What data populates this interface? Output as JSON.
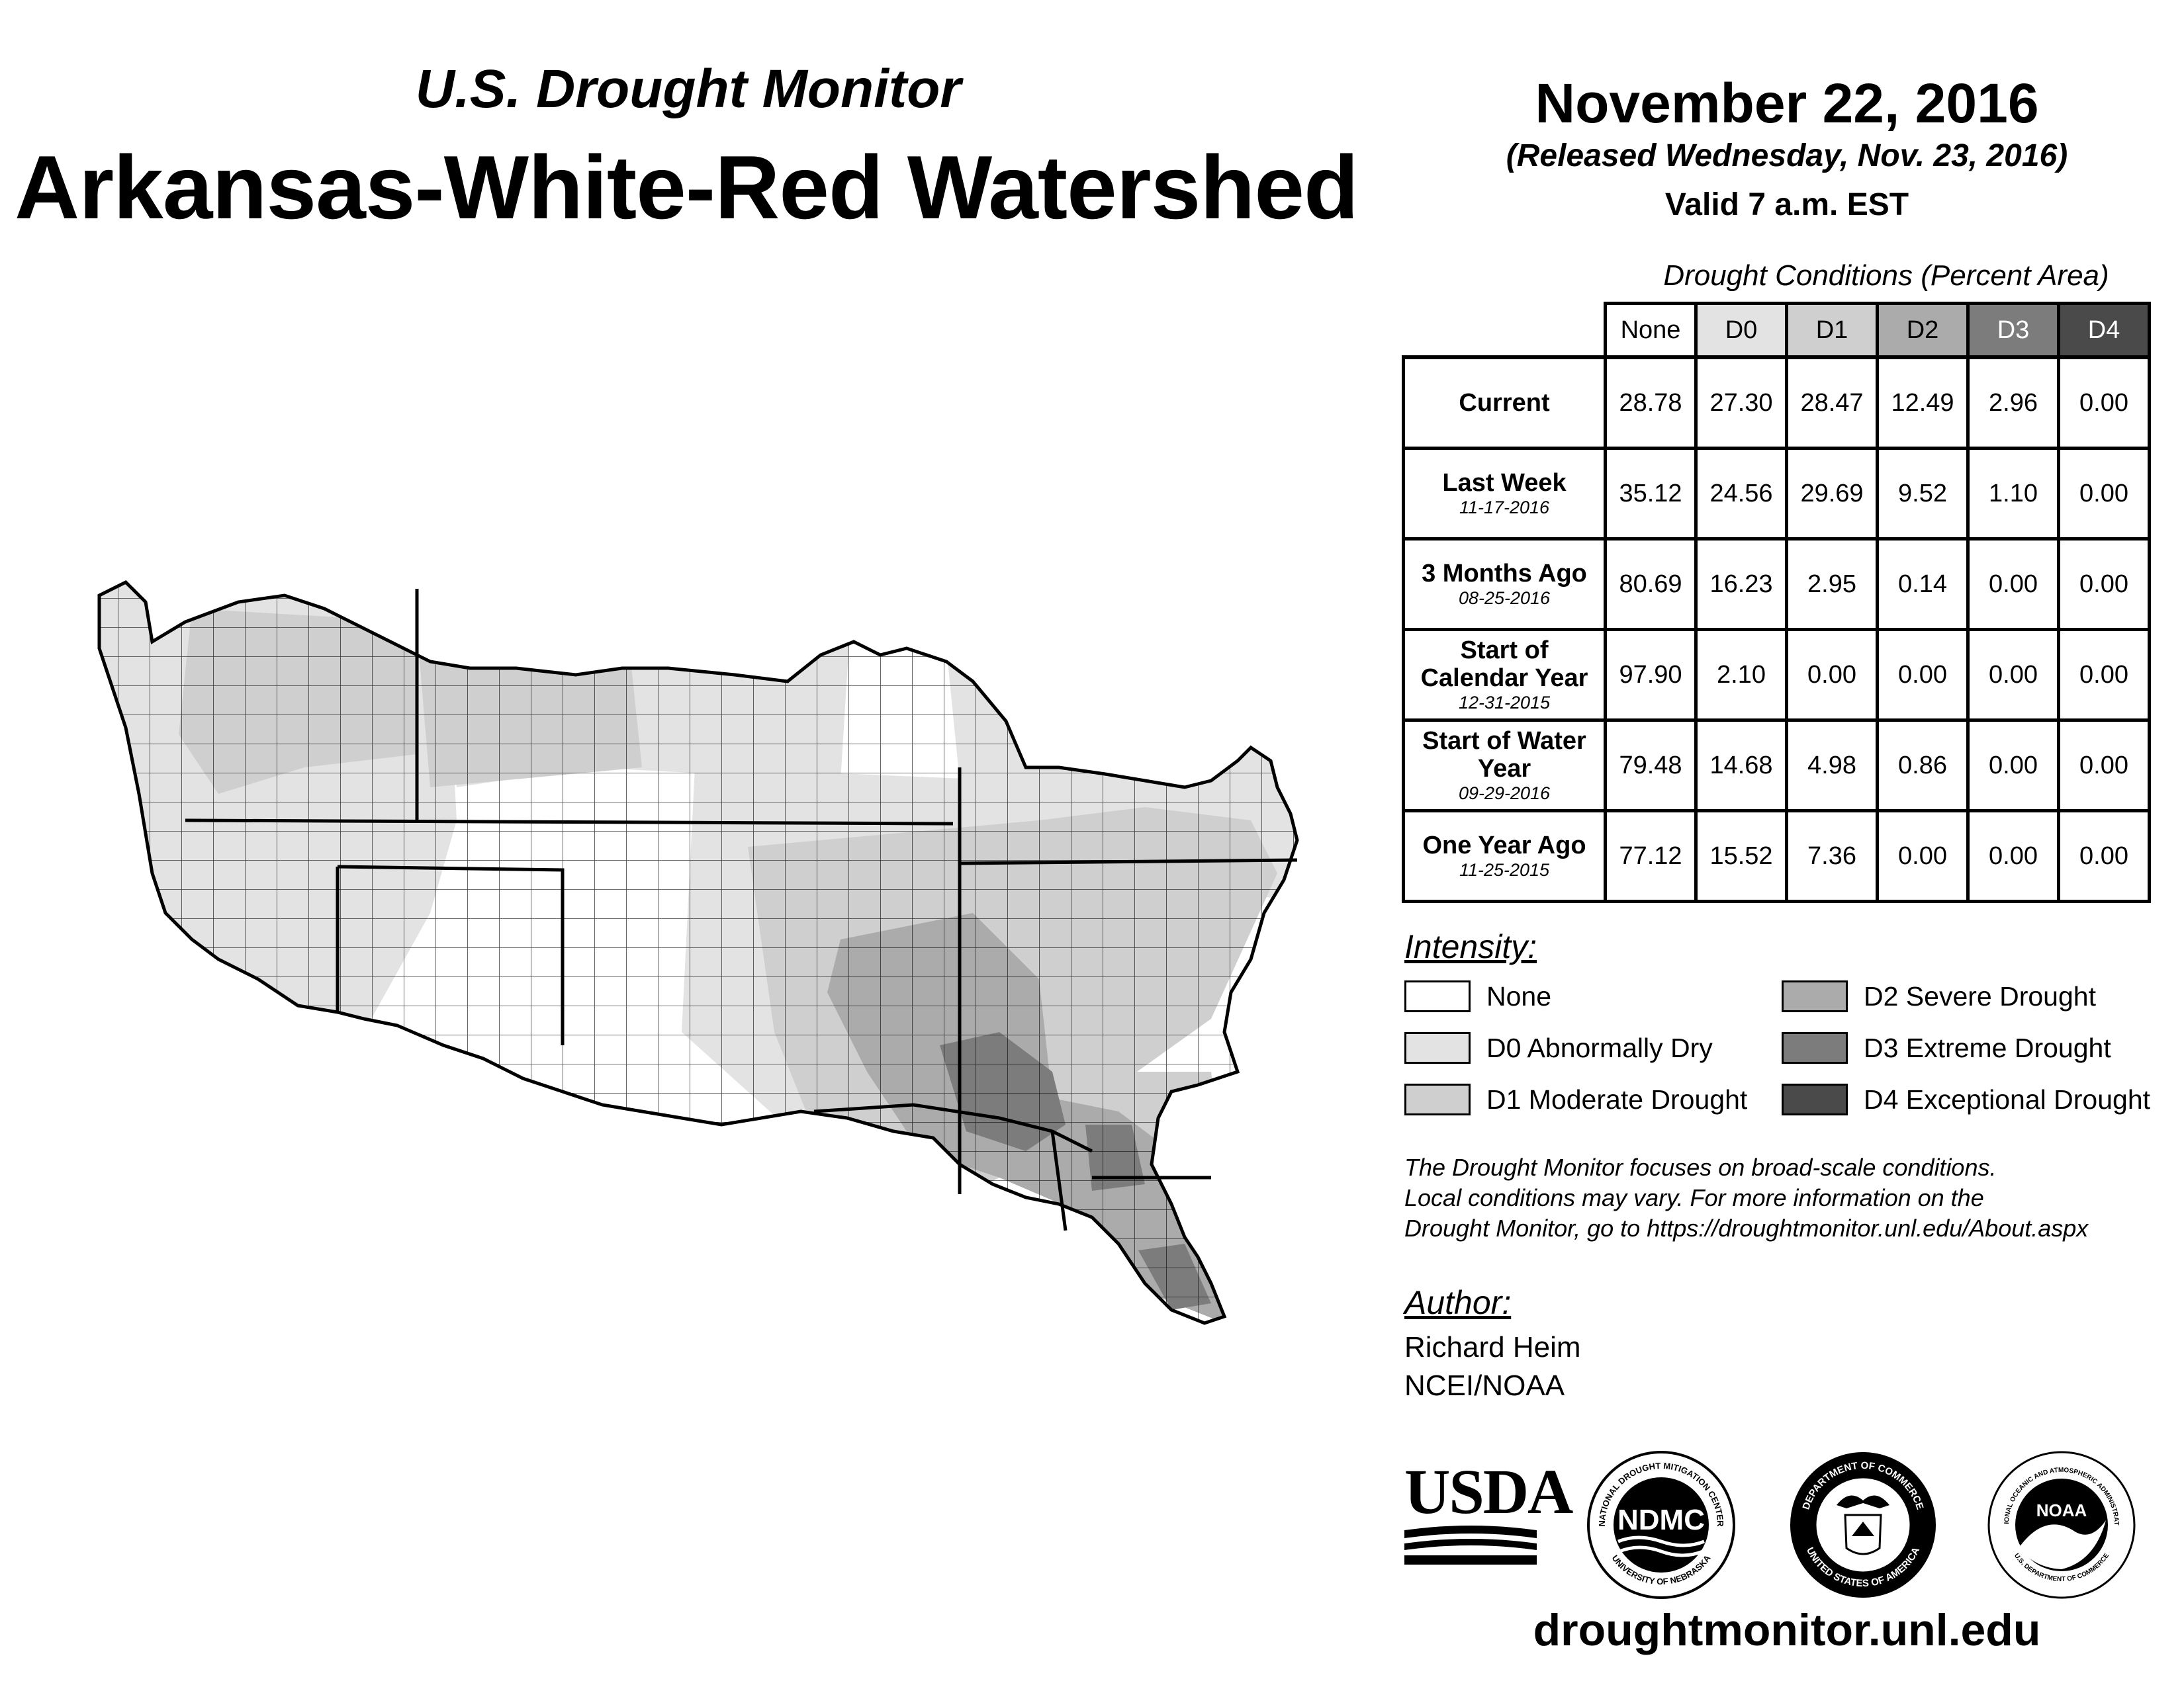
{
  "header": {
    "subtitle": "U.S. Drought Monitor",
    "title": "Arkansas-White-Red Watershed",
    "date": "November 22, 2016",
    "released": "(Released Wednesday, Nov. 23, 2016)",
    "valid": "Valid 7 a.m. EST"
  },
  "table": {
    "title": "Drought Conditions (Percent Area)",
    "columns": [
      "None",
      "D0",
      "D1",
      "D2",
      "D3",
      "D4"
    ],
    "column_colors": [
      "#ffffff",
      "#e3e3e3",
      "#cfcfcf",
      "#ababab",
      "#7c7c7c",
      "#4a4a4a"
    ],
    "rows": [
      {
        "label": "Current",
        "date": "",
        "values": [
          "28.78",
          "27.30",
          "28.47",
          "12.49",
          "2.96",
          "0.00"
        ]
      },
      {
        "label": "Last Week",
        "date": "11-17-2016",
        "values": [
          "35.12",
          "24.56",
          "29.69",
          "9.52",
          "1.10",
          "0.00"
        ]
      },
      {
        "label": "3 Months Ago",
        "date": "08-25-2016",
        "values": [
          "80.69",
          "16.23",
          "2.95",
          "0.14",
          "0.00",
          "0.00"
        ]
      },
      {
        "label": "Start of Calendar Year",
        "date": "12-31-2015",
        "values": [
          "97.90",
          "2.10",
          "0.00",
          "0.00",
          "0.00",
          "0.00"
        ]
      },
      {
        "label": "Start of Water Year",
        "date": "09-29-2016",
        "values": [
          "79.48",
          "14.68",
          "4.98",
          "0.86",
          "0.00",
          "0.00"
        ]
      },
      {
        "label": "One Year Ago",
        "date": "11-25-2015",
        "values": [
          "77.12",
          "15.52",
          "7.36",
          "0.00",
          "0.00",
          "0.00"
        ]
      }
    ]
  },
  "legend": {
    "title": "Intensity:",
    "items": [
      {
        "label": "None",
        "color": "#ffffff"
      },
      {
        "label": "D0 Abnormally Dry",
        "color": "#e3e3e3"
      },
      {
        "label": "D1 Moderate Drought",
        "color": "#cfcfcf"
      },
      {
        "label": "D2 Severe Drought",
        "color": "#ababab"
      },
      {
        "label": "D3 Extreme Drought",
        "color": "#7c7c7c"
      },
      {
        "label": "D4 Exceptional Drought",
        "color": "#4a4a4a"
      }
    ]
  },
  "disclaimer": [
    "The Drought Monitor focuses on broad-scale conditions.",
    "Local conditions may vary. For more information on the",
    "Drought Monitor, go to https://droughtmonitor.unl.edu/About.aspx"
  ],
  "author": {
    "label": "Author:",
    "name": "Richard Heim",
    "org": "NCEI/NOAA"
  },
  "logos": {
    "usda": "USDA",
    "ndmc": "NDMC",
    "ndmc_ring_top": "NATIONAL DROUGHT MITIGATION CENTER",
    "ndmc_ring_bottom": "UNIVERSITY OF NEBRASKA",
    "doc_ring_top": "DEPARTMENT OF COMMERCE",
    "doc_ring_bottom": "UNITED STATES OF AMERICA",
    "noaa": "NOAA",
    "noaa_ring_top": "NATIONAL OCEANIC AND ATMOSPHERIC ADMINISTRATION",
    "noaa_ring_bottom": "U.S. DEPARTMENT OF COMMERCE"
  },
  "footer": {
    "url": "droughtmonitor.unl.edu"
  }
}
